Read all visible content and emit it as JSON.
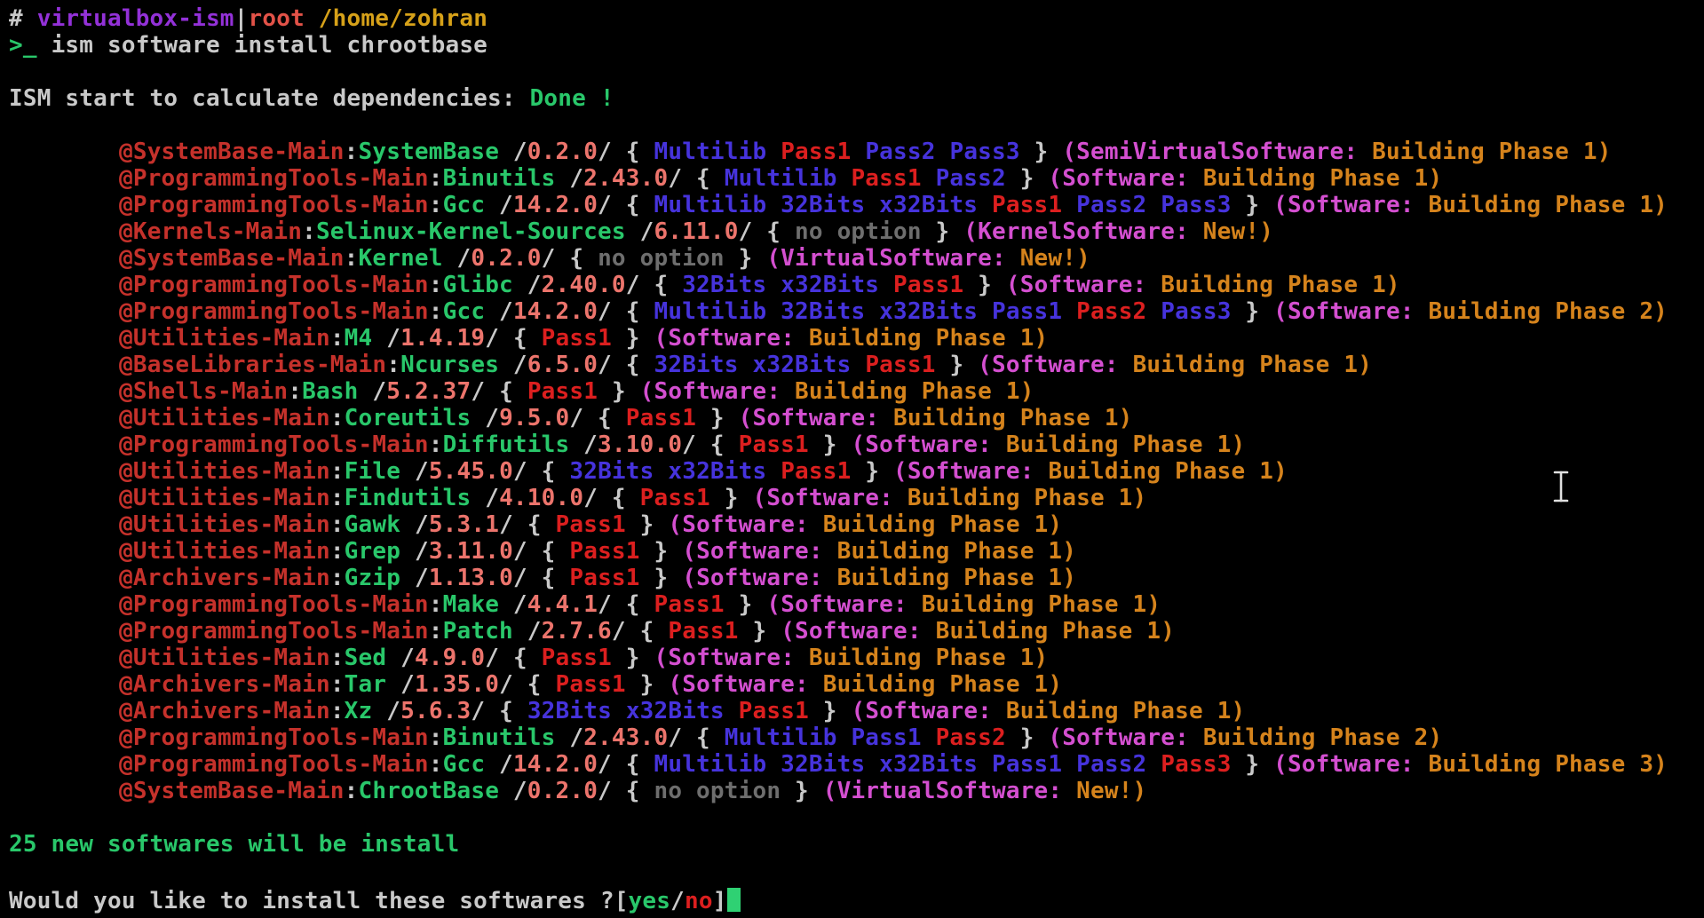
{
  "palette": {
    "foreground": "#c9c9c9",
    "muted": "#6e6e6e",
    "category_red": "#c5312b",
    "active_red": "#dc1f1f",
    "green": "#29c76a",
    "version_salmon": "#ec746c",
    "option_blue": "#4633dc",
    "group_magenta": "#d44fd0",
    "status_orange": "#d5831c",
    "purple": "#9331d8",
    "coral": "#e25248",
    "gold": "#d6a119",
    "cursor_green": "#2fd173",
    "ibeam_gray": "#e0e0e0"
  },
  "terminal": {
    "title_line": [
      [
        "# ",
        "foreground"
      ],
      [
        "virtualbox-ism",
        "purple"
      ],
      [
        "|",
        "foreground"
      ],
      [
        "root",
        "coral"
      ],
      [
        " /home/zohran",
        "gold"
      ]
    ],
    "command_line": [
      [
        ">_",
        "green"
      ],
      [
        " ism software install chrootbase",
        "foreground"
      ]
    ],
    "calc_line": [
      [
        "ISM start to calculate dependencies: ",
        "foreground"
      ],
      [
        "Done !",
        "green"
      ]
    ],
    "no_option_label": "no option",
    "packages": [
      {
        "category": "@SystemBase-Main",
        "name": "SystemBase",
        "version": "0.2.0",
        "options": [
          {
            "label": "Multilib"
          },
          {
            "label": "Pass1",
            "highlight": true
          },
          {
            "label": "Pass2"
          },
          {
            "label": "Pass3"
          }
        ],
        "group": "SemiVirtualSoftware",
        "status": "Building Phase 1"
      },
      {
        "category": "@ProgrammingTools-Main",
        "name": "Binutils",
        "version": "2.43.0",
        "options": [
          {
            "label": "Multilib"
          },
          {
            "label": "Pass1",
            "highlight": true
          },
          {
            "label": "Pass2"
          }
        ],
        "group": "Software",
        "status": "Building Phase 1"
      },
      {
        "category": "@ProgrammingTools-Main",
        "name": "Gcc",
        "version": "14.2.0",
        "options": [
          {
            "label": "Multilib"
          },
          {
            "label": "32Bits"
          },
          {
            "label": "x32Bits"
          },
          {
            "label": "Pass1",
            "highlight": true
          },
          {
            "label": "Pass2"
          },
          {
            "label": "Pass3"
          }
        ],
        "group": "Software",
        "status": "Building Phase 1"
      },
      {
        "category": "@Kernels-Main",
        "name": "Selinux-Kernel-Sources",
        "version": "6.11.0",
        "options": null,
        "group": "KernelSoftware",
        "status": "New!"
      },
      {
        "category": "@SystemBase-Main",
        "name": "Kernel",
        "version": "0.2.0",
        "options": null,
        "group": "VirtualSoftware",
        "status": "New!"
      },
      {
        "category": "@ProgrammingTools-Main",
        "name": "Glibc",
        "version": "2.40.0",
        "options": [
          {
            "label": "32Bits"
          },
          {
            "label": "x32Bits"
          },
          {
            "label": "Pass1",
            "highlight": true
          }
        ],
        "group": "Software",
        "status": "Building Phase 1"
      },
      {
        "category": "@ProgrammingTools-Main",
        "name": "Gcc",
        "version": "14.2.0",
        "options": [
          {
            "label": "Multilib"
          },
          {
            "label": "32Bits"
          },
          {
            "label": "x32Bits"
          },
          {
            "label": "Pass1"
          },
          {
            "label": "Pass2",
            "highlight": true
          },
          {
            "label": "Pass3"
          }
        ],
        "group": "Software",
        "status": "Building Phase 2"
      },
      {
        "category": "@Utilities-Main",
        "name": "M4",
        "version": "1.4.19",
        "options": [
          {
            "label": "Pass1",
            "highlight": true
          }
        ],
        "group": "Software",
        "status": "Building Phase 1"
      },
      {
        "category": "@BaseLibraries-Main",
        "name": "Ncurses",
        "version": "6.5.0",
        "options": [
          {
            "label": "32Bits"
          },
          {
            "label": "x32Bits"
          },
          {
            "label": "Pass1",
            "highlight": true
          }
        ],
        "group": "Software",
        "status": "Building Phase 1"
      },
      {
        "category": "@Shells-Main",
        "name": "Bash",
        "version": "5.2.37",
        "options": [
          {
            "label": "Pass1",
            "highlight": true
          }
        ],
        "group": "Software",
        "status": "Building Phase 1"
      },
      {
        "category": "@Utilities-Main",
        "name": "Coreutils",
        "version": "9.5.0",
        "options": [
          {
            "label": "Pass1",
            "highlight": true
          }
        ],
        "group": "Software",
        "status": "Building Phase 1"
      },
      {
        "category": "@ProgrammingTools-Main",
        "name": "Diffutils",
        "version": "3.10.0",
        "options": [
          {
            "label": "Pass1",
            "highlight": true
          }
        ],
        "group": "Software",
        "status": "Building Phase 1"
      },
      {
        "category": "@Utilities-Main",
        "name": "File",
        "version": "5.45.0",
        "options": [
          {
            "label": "32Bits"
          },
          {
            "label": "x32Bits"
          },
          {
            "label": "Pass1",
            "highlight": true
          }
        ],
        "group": "Software",
        "status": "Building Phase 1"
      },
      {
        "category": "@Utilities-Main",
        "name": "Findutils",
        "version": "4.10.0",
        "options": [
          {
            "label": "Pass1",
            "highlight": true
          }
        ],
        "group": "Software",
        "status": "Building Phase 1"
      },
      {
        "category": "@Utilities-Main",
        "name": "Gawk",
        "version": "5.3.1",
        "options": [
          {
            "label": "Pass1",
            "highlight": true
          }
        ],
        "group": "Software",
        "status": "Building Phase 1"
      },
      {
        "category": "@Utilities-Main",
        "name": "Grep",
        "version": "3.11.0",
        "options": [
          {
            "label": "Pass1",
            "highlight": true
          }
        ],
        "group": "Software",
        "status": "Building Phase 1"
      },
      {
        "category": "@Archivers-Main",
        "name": "Gzip",
        "version": "1.13.0",
        "options": [
          {
            "label": "Pass1",
            "highlight": true
          }
        ],
        "group": "Software",
        "status": "Building Phase 1"
      },
      {
        "category": "@ProgrammingTools-Main",
        "name": "Make",
        "version": "4.4.1",
        "options": [
          {
            "label": "Pass1",
            "highlight": true
          }
        ],
        "group": "Software",
        "status": "Building Phase 1"
      },
      {
        "category": "@ProgrammingTools-Main",
        "name": "Patch",
        "version": "2.7.6",
        "options": [
          {
            "label": "Pass1",
            "highlight": true
          }
        ],
        "group": "Software",
        "status": "Building Phase 1"
      },
      {
        "category": "@Utilities-Main",
        "name": "Sed",
        "version": "4.9.0",
        "options": [
          {
            "label": "Pass1",
            "highlight": true
          }
        ],
        "group": "Software",
        "status": "Building Phase 1"
      },
      {
        "category": "@Archivers-Main",
        "name": "Tar",
        "version": "1.35.0",
        "options": [
          {
            "label": "Pass1",
            "highlight": true
          }
        ],
        "group": "Software",
        "status": "Building Phase 1"
      },
      {
        "category": "@Archivers-Main",
        "name": "Xz",
        "version": "5.6.3",
        "options": [
          {
            "label": "32Bits"
          },
          {
            "label": "x32Bits"
          },
          {
            "label": "Pass1",
            "highlight": true
          }
        ],
        "group": "Software",
        "status": "Building Phase 1"
      },
      {
        "category": "@ProgrammingTools-Main",
        "name": "Binutils",
        "version": "2.43.0",
        "options": [
          {
            "label": "Multilib"
          },
          {
            "label": "Pass1"
          },
          {
            "label": "Pass2",
            "highlight": true
          }
        ],
        "group": "Software",
        "status": "Building Phase 2"
      },
      {
        "category": "@ProgrammingTools-Main",
        "name": "Gcc",
        "version": "14.2.0",
        "options": [
          {
            "label": "Multilib"
          },
          {
            "label": "32Bits"
          },
          {
            "label": "x32Bits"
          },
          {
            "label": "Pass1"
          },
          {
            "label": "Pass2"
          },
          {
            "label": "Pass3",
            "highlight": true
          }
        ],
        "group": "Software",
        "status": "Building Phase 3"
      },
      {
        "category": "@SystemBase-Main",
        "name": "ChrootBase",
        "version": "0.2.0",
        "options": null,
        "group": "VirtualSoftware",
        "status": "New!"
      }
    ],
    "summary_line": [
      [
        "25 new softwares will be install",
        "green"
      ]
    ],
    "prompt_line": [
      [
        "Would you like to install these softwares ?[",
        "foreground"
      ],
      [
        "yes",
        "green"
      ],
      [
        "/",
        "foreground"
      ],
      [
        "no",
        "active_red"
      ],
      [
        "]",
        "foreground"
      ]
    ]
  }
}
